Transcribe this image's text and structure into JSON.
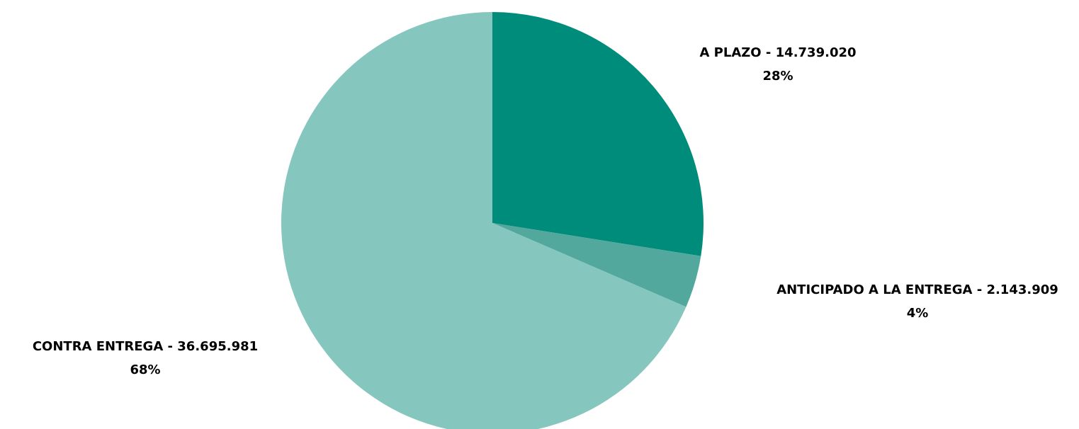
{
  "chart_data": {
    "type": "pie",
    "categories": [
      "A PLAZO",
      "ANTICIPADO A LA ENTREGA",
      "CONTRA ENTREGA"
    ],
    "values": [
      14739020,
      2143909,
      36695981
    ],
    "value_labels": [
      "14.739.020",
      "2.143.909",
      "36.695.981"
    ],
    "label_separator": " - ",
    "percents": [
      28,
      4,
      68
    ],
    "percent_labels": [
      "28%",
      "4%",
      "68%"
    ],
    "colors": [
      "#008c7a",
      "#52a89c",
      "#85c6be"
    ]
  }
}
